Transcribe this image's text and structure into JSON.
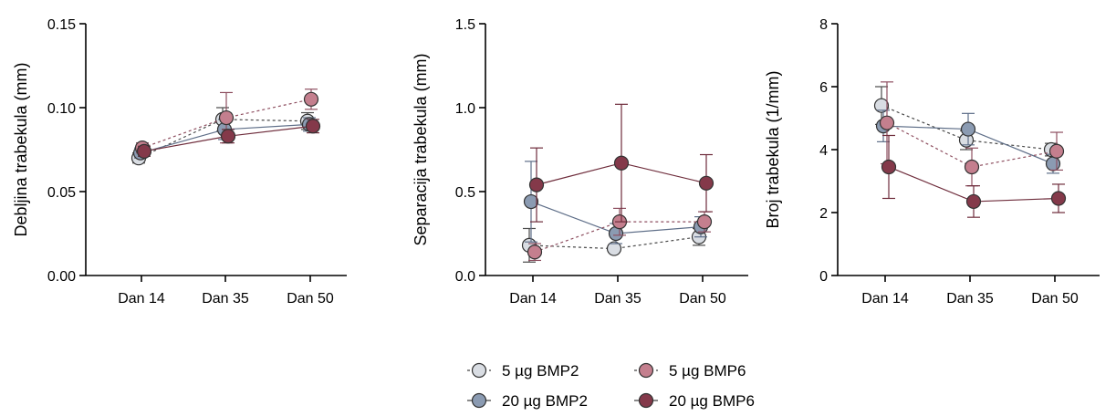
{
  "legend": {
    "items": [
      {
        "label": "5 µg BMP2",
        "color": "#d9dde3",
        "dash": true
      },
      {
        "label": "20 µg BMP2",
        "color": "#8b9bb2",
        "dash": false
      },
      {
        "label": "5 µg BMP6",
        "color": "#c47f8e",
        "dash": true
      },
      {
        "label": "20 µg BMP6",
        "color": "#84394a",
        "dash": false
      }
    ]
  },
  "chart_data": [
    {
      "type": "line",
      "title": "",
      "xlabel": "",
      "ylabel": "Debljina trabekula (mm)",
      "categories": [
        "Dan 14",
        "Dan 35",
        "Dan 50"
      ],
      "ylim": [
        0,
        0.15
      ],
      "yticks": [
        0.0,
        0.05,
        0.1,
        0.15
      ],
      "ytick_labels": [
        "0.00",
        "0.05",
        "0.10",
        "0.15"
      ],
      "grid": false,
      "series": [
        {
          "name": "5 µg BMP2",
          "values": [
            0.07,
            0.093,
            0.092
          ],
          "errors": [
            0.003,
            0.007,
            0.005
          ]
        },
        {
          "name": "20 µg BMP2",
          "values": [
            0.073,
            0.087,
            0.09
          ],
          "errors": [
            0.003,
            0.006,
            0.004
          ]
        },
        {
          "name": "5 µg BMP6",
          "values": [
            0.076,
            0.094,
            0.105
          ],
          "errors": [
            0.003,
            0.015,
            0.006
          ]
        },
        {
          "name": "20 µg BMP6",
          "values": [
            0.074,
            0.083,
            0.089
          ],
          "errors": [
            0.003,
            0.004,
            0.004
          ]
        }
      ]
    },
    {
      "type": "line",
      "title": "",
      "xlabel": "",
      "ylabel": "Separacija trabekula (mm)",
      "categories": [
        "Dan 14",
        "Dan 35",
        "Dan 50"
      ],
      "ylim": [
        0,
        1.5
      ],
      "yticks": [
        0.0,
        0.5,
        1.0,
        1.5
      ],
      "ytick_labels": [
        "0.0",
        "0.5",
        "1.0",
        "1.5"
      ],
      "grid": false,
      "series": [
        {
          "name": "5 µg BMP2",
          "values": [
            0.18,
            0.16,
            0.23
          ],
          "errors": [
            0.1,
            0.02,
            0.05
          ]
        },
        {
          "name": "20 µg BMP2",
          "values": [
            0.44,
            0.25,
            0.29
          ],
          "errors": [
            0.24,
            0.06,
            0.06
          ]
        },
        {
          "name": "5 µg BMP6",
          "values": [
            0.14,
            0.32,
            0.32
          ],
          "errors": [
            0.05,
            0.08,
            0.06
          ]
        },
        {
          "name": "20 µg BMP6",
          "values": [
            0.54,
            0.67,
            0.55
          ],
          "errors": [
            0.22,
            0.35,
            0.17
          ]
        }
      ]
    },
    {
      "type": "line",
      "title": "",
      "xlabel": "",
      "ylabel": "Broj trabekula (1/mm)",
      "categories": [
        "Dan 14",
        "Dan 35",
        "Dan 50"
      ],
      "ylim": [
        0,
        8
      ],
      "yticks": [
        0,
        2,
        4,
        6,
        8
      ],
      "ytick_labels": [
        "0",
        "2",
        "4",
        "6",
        "8"
      ],
      "grid": false,
      "series": [
        {
          "name": "5 µg BMP2",
          "values": [
            5.4,
            4.3,
            4.0
          ],
          "errors": [
            0.6,
            0.3,
            0.2
          ]
        },
        {
          "name": "20 µg BMP2",
          "values": [
            4.75,
            4.65,
            3.55
          ],
          "errors": [
            0.5,
            0.5,
            0.3
          ]
        },
        {
          "name": "5 µg BMP6",
          "values": [
            4.85,
            3.45,
            3.95
          ],
          "errors": [
            1.3,
            0.6,
            0.6
          ]
        },
        {
          "name": "20 µg BMP6",
          "values": [
            3.45,
            2.35,
            2.45
          ],
          "errors": [
            1.0,
            0.5,
            0.45
          ]
        }
      ]
    }
  ]
}
